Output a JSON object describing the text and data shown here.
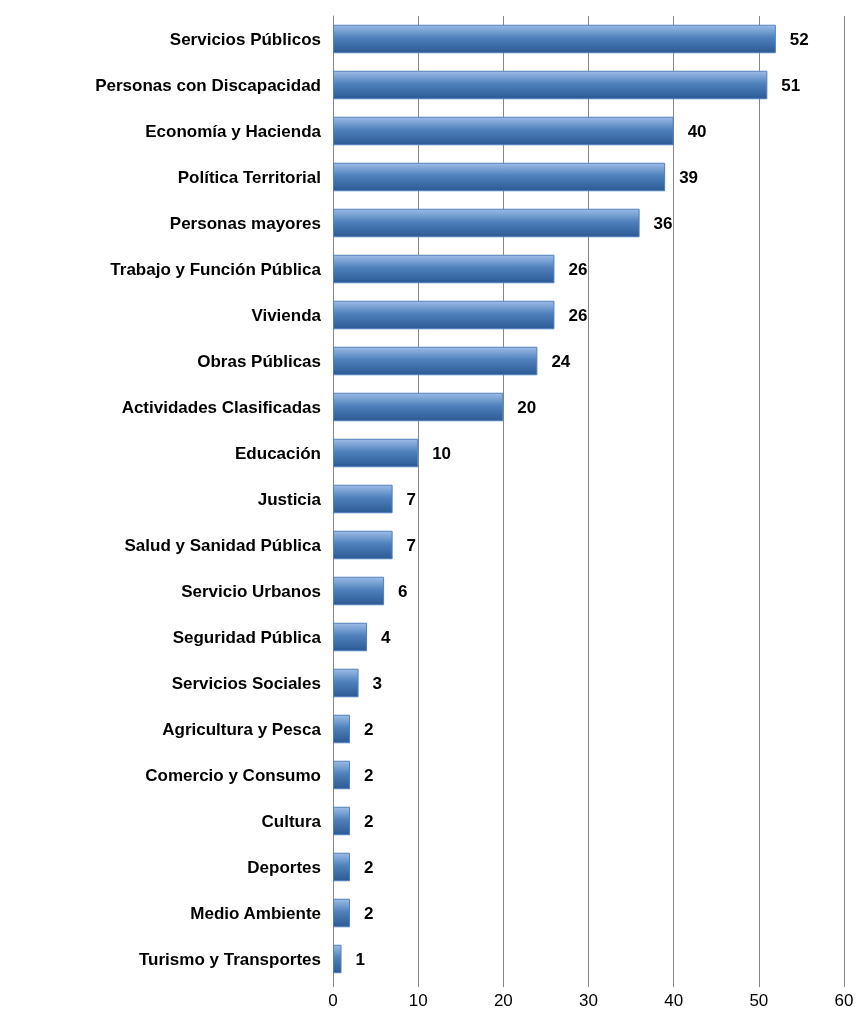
{
  "chart_data": {
    "type": "bar",
    "orientation": "horizontal",
    "categories": [
      "Servicios Públicos",
      "Personas con Discapacidad",
      "Economía y Hacienda",
      "Política Territorial",
      "Personas mayores",
      "Trabajo y Función Pública",
      "Vivienda",
      "Obras Públicas",
      "Actividades Clasificadas",
      "Educación",
      "Justicia",
      "Salud y Sanidad Pública",
      "Servicio Urbanos",
      "Seguridad Pública",
      "Servicios Sociales",
      "Agricultura y Pesca",
      "Comercio y Consumo",
      "Cultura",
      "Deportes",
      "Medio Ambiente",
      "Turismo y Transportes"
    ],
    "values": [
      52,
      51,
      40,
      39,
      36,
      26,
      26,
      24,
      20,
      10,
      7,
      7,
      6,
      4,
      3,
      2,
      2,
      2,
      2,
      2,
      1
    ],
    "color": "#4f81bd",
    "xlim": [
      0,
      60
    ],
    "xticks": [
      0,
      10,
      20,
      30,
      40,
      50,
      60
    ],
    "grid": "x",
    "data_labels": true
  }
}
